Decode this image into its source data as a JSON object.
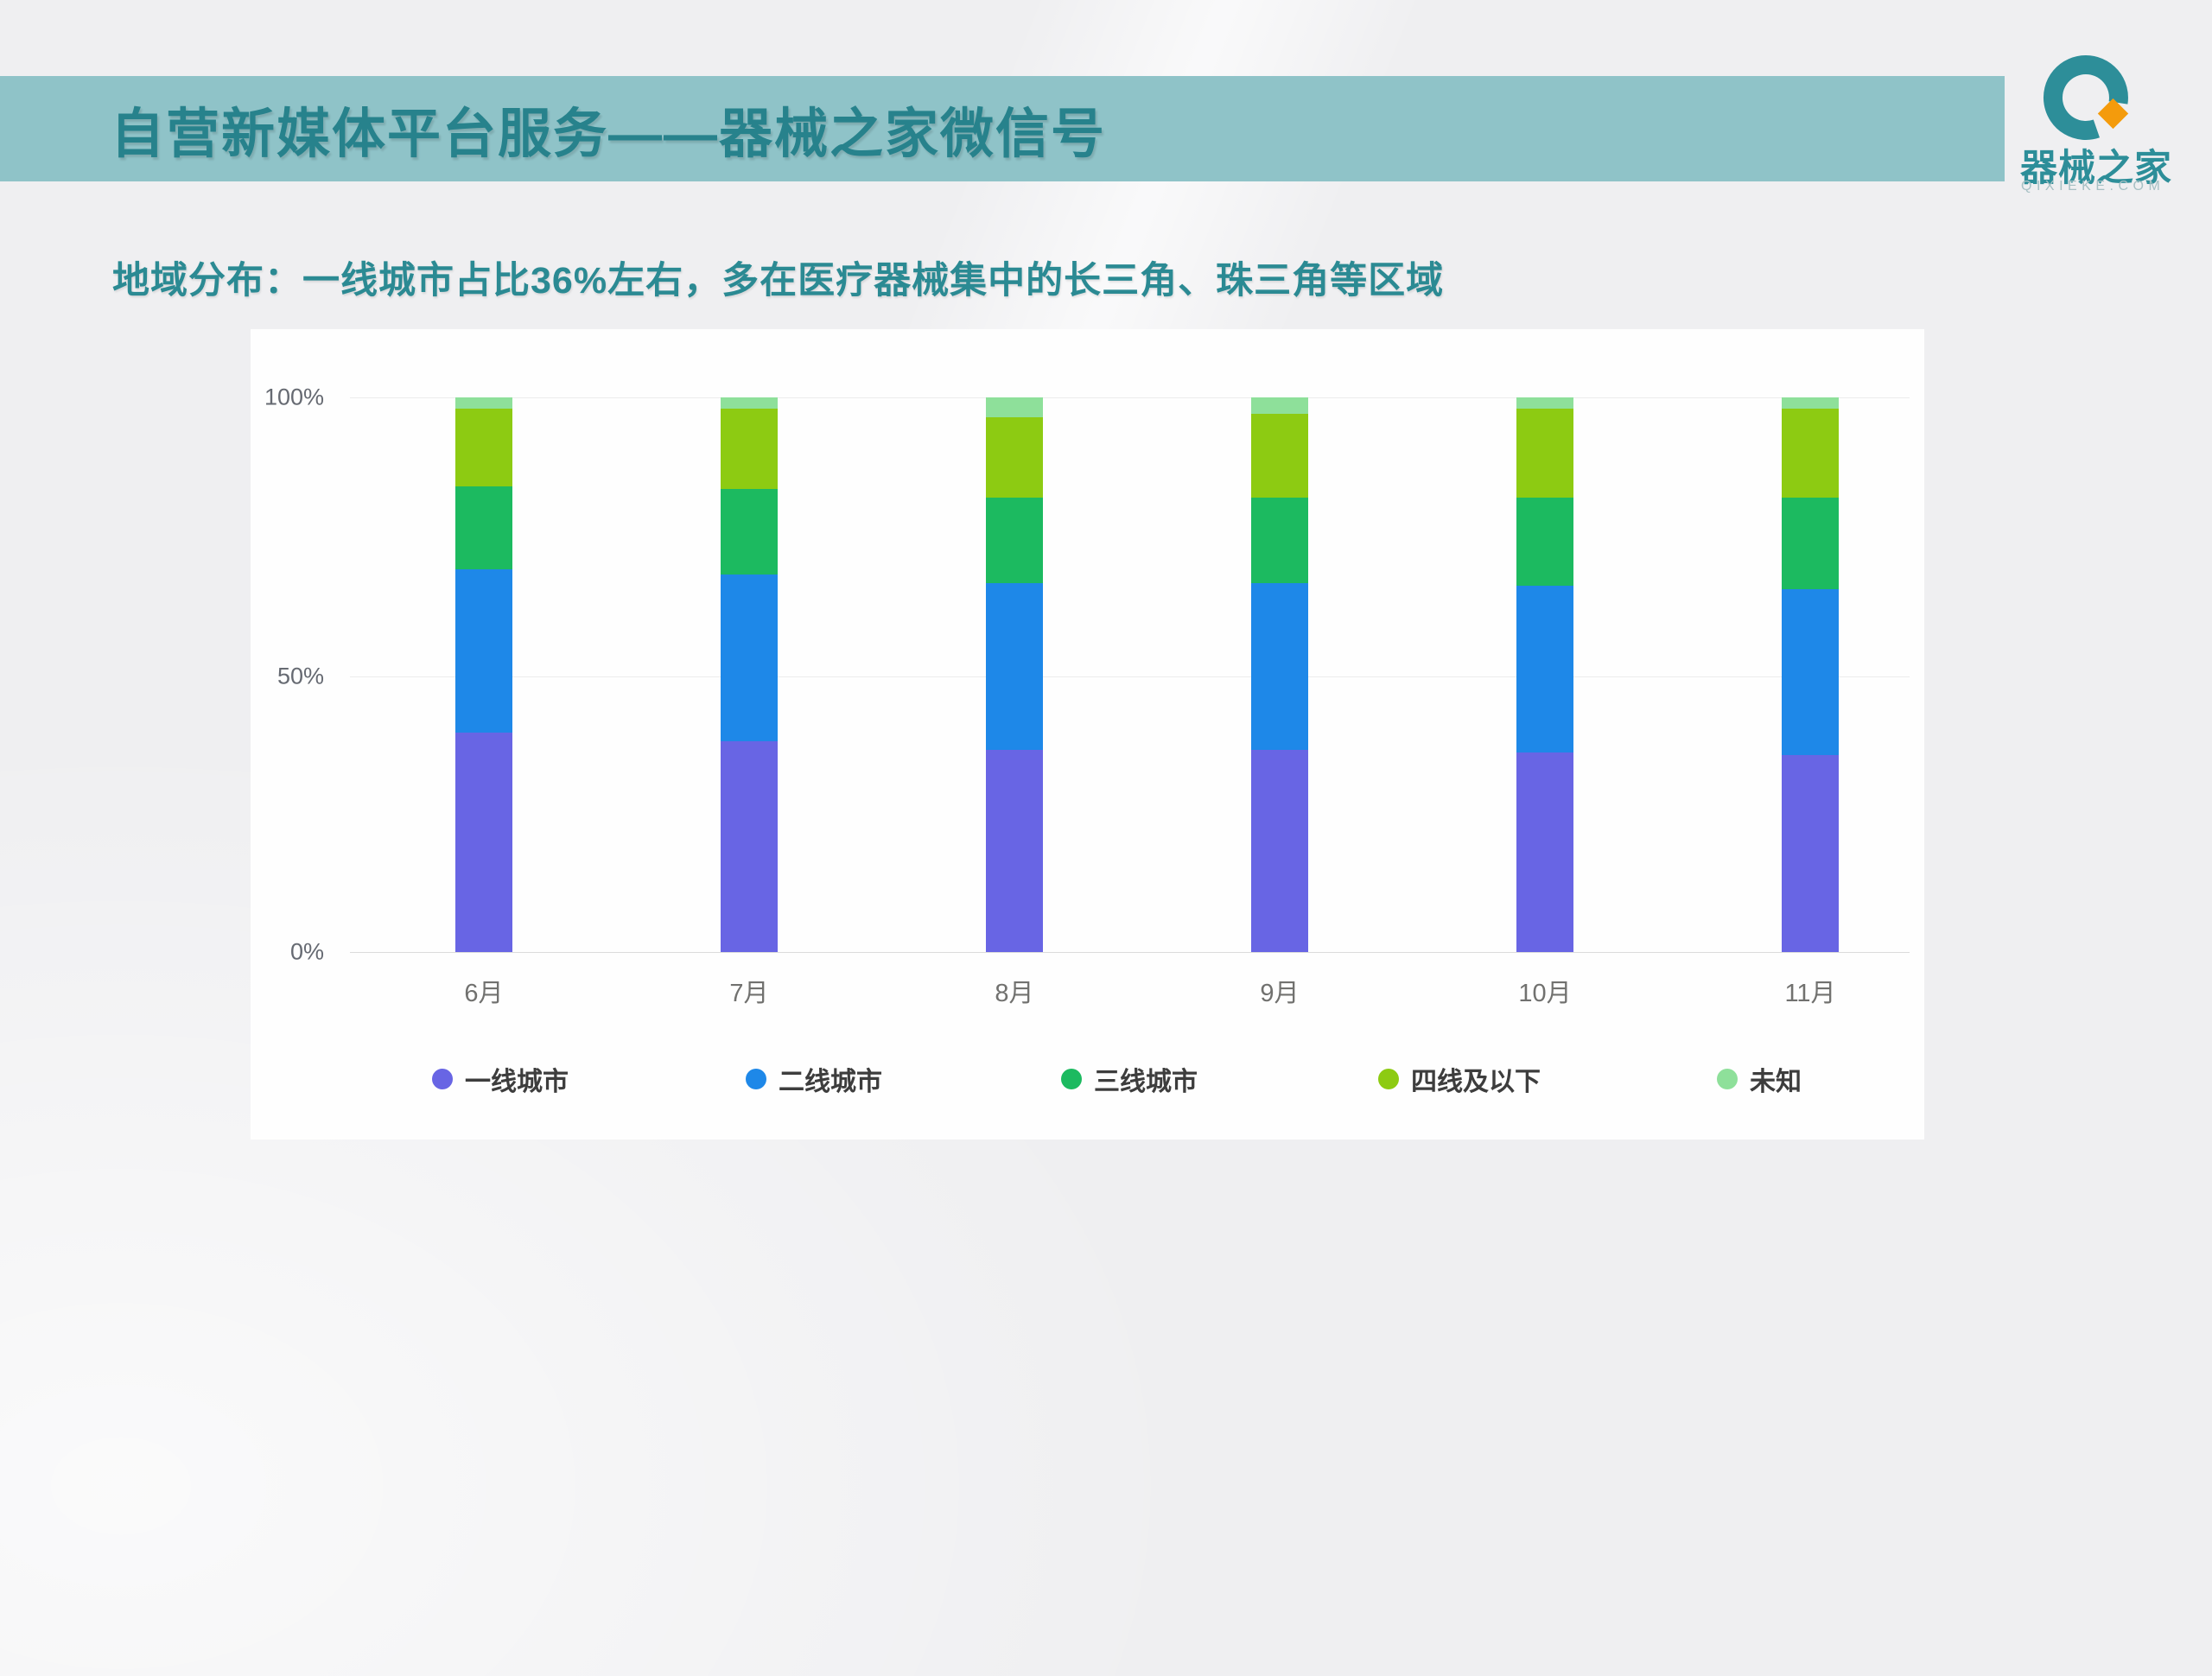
{
  "slide": {
    "title": "自营新媒体平台服务——器械之家微信号",
    "subtitle": "地域分布：一线城市占比36%左右，多在医疗器械集中的长三角、珠三角等区域"
  },
  "logo": {
    "name": "器械之家",
    "domain": "QIXIEKE.COM",
    "teal": "#2D8E99",
    "orange": "#F49B0C"
  },
  "colors": {
    "header_bar": "#8FC3C8",
    "title_text": "#27828C",
    "subtitle_text": "#2B8A93",
    "background": "#EFEFF1",
    "panel": "#FEFEFE",
    "gridline": "#ECECEC",
    "y_label": "#666A72",
    "x_label": "#71716F",
    "legend_label": "#3D3D3D"
  },
  "chart_data": {
    "type": "bar",
    "stacked": true,
    "unit": "percent",
    "title": "",
    "xlabel": "",
    "ylabel": "",
    "categories": [
      "6月",
      "7月",
      "8月",
      "9月",
      "10月",
      "11月"
    ],
    "series": [
      {
        "name": "一线城市",
        "color": "#6865E4",
        "values": [
          39.5,
          38.0,
          36.5,
          36.5,
          36.0,
          35.5
        ]
      },
      {
        "name": "二线城市",
        "color": "#1E88E8",
        "values": [
          29.5,
          30.0,
          30.0,
          30.0,
          30.0,
          30.0
        ]
      },
      {
        "name": "三线城市",
        "color": "#1CBA60",
        "values": [
          15.0,
          15.5,
          15.5,
          15.5,
          16.0,
          16.5
        ]
      },
      {
        "name": "四线及以下",
        "color": "#8DCB12",
        "values": [
          14.0,
          14.5,
          14.5,
          15.0,
          16.0,
          16.0
        ]
      },
      {
        "name": "未知",
        "color": "#8EE09A",
        "values": [
          2.0,
          2.0,
          3.5,
          3.0,
          2.0,
          2.0
        ]
      }
    ],
    "y_ticks": [
      "100%",
      "50%",
      "0%"
    ],
    "ylim": [
      0,
      100
    ],
    "grid": true,
    "legend_position": "bottom"
  }
}
